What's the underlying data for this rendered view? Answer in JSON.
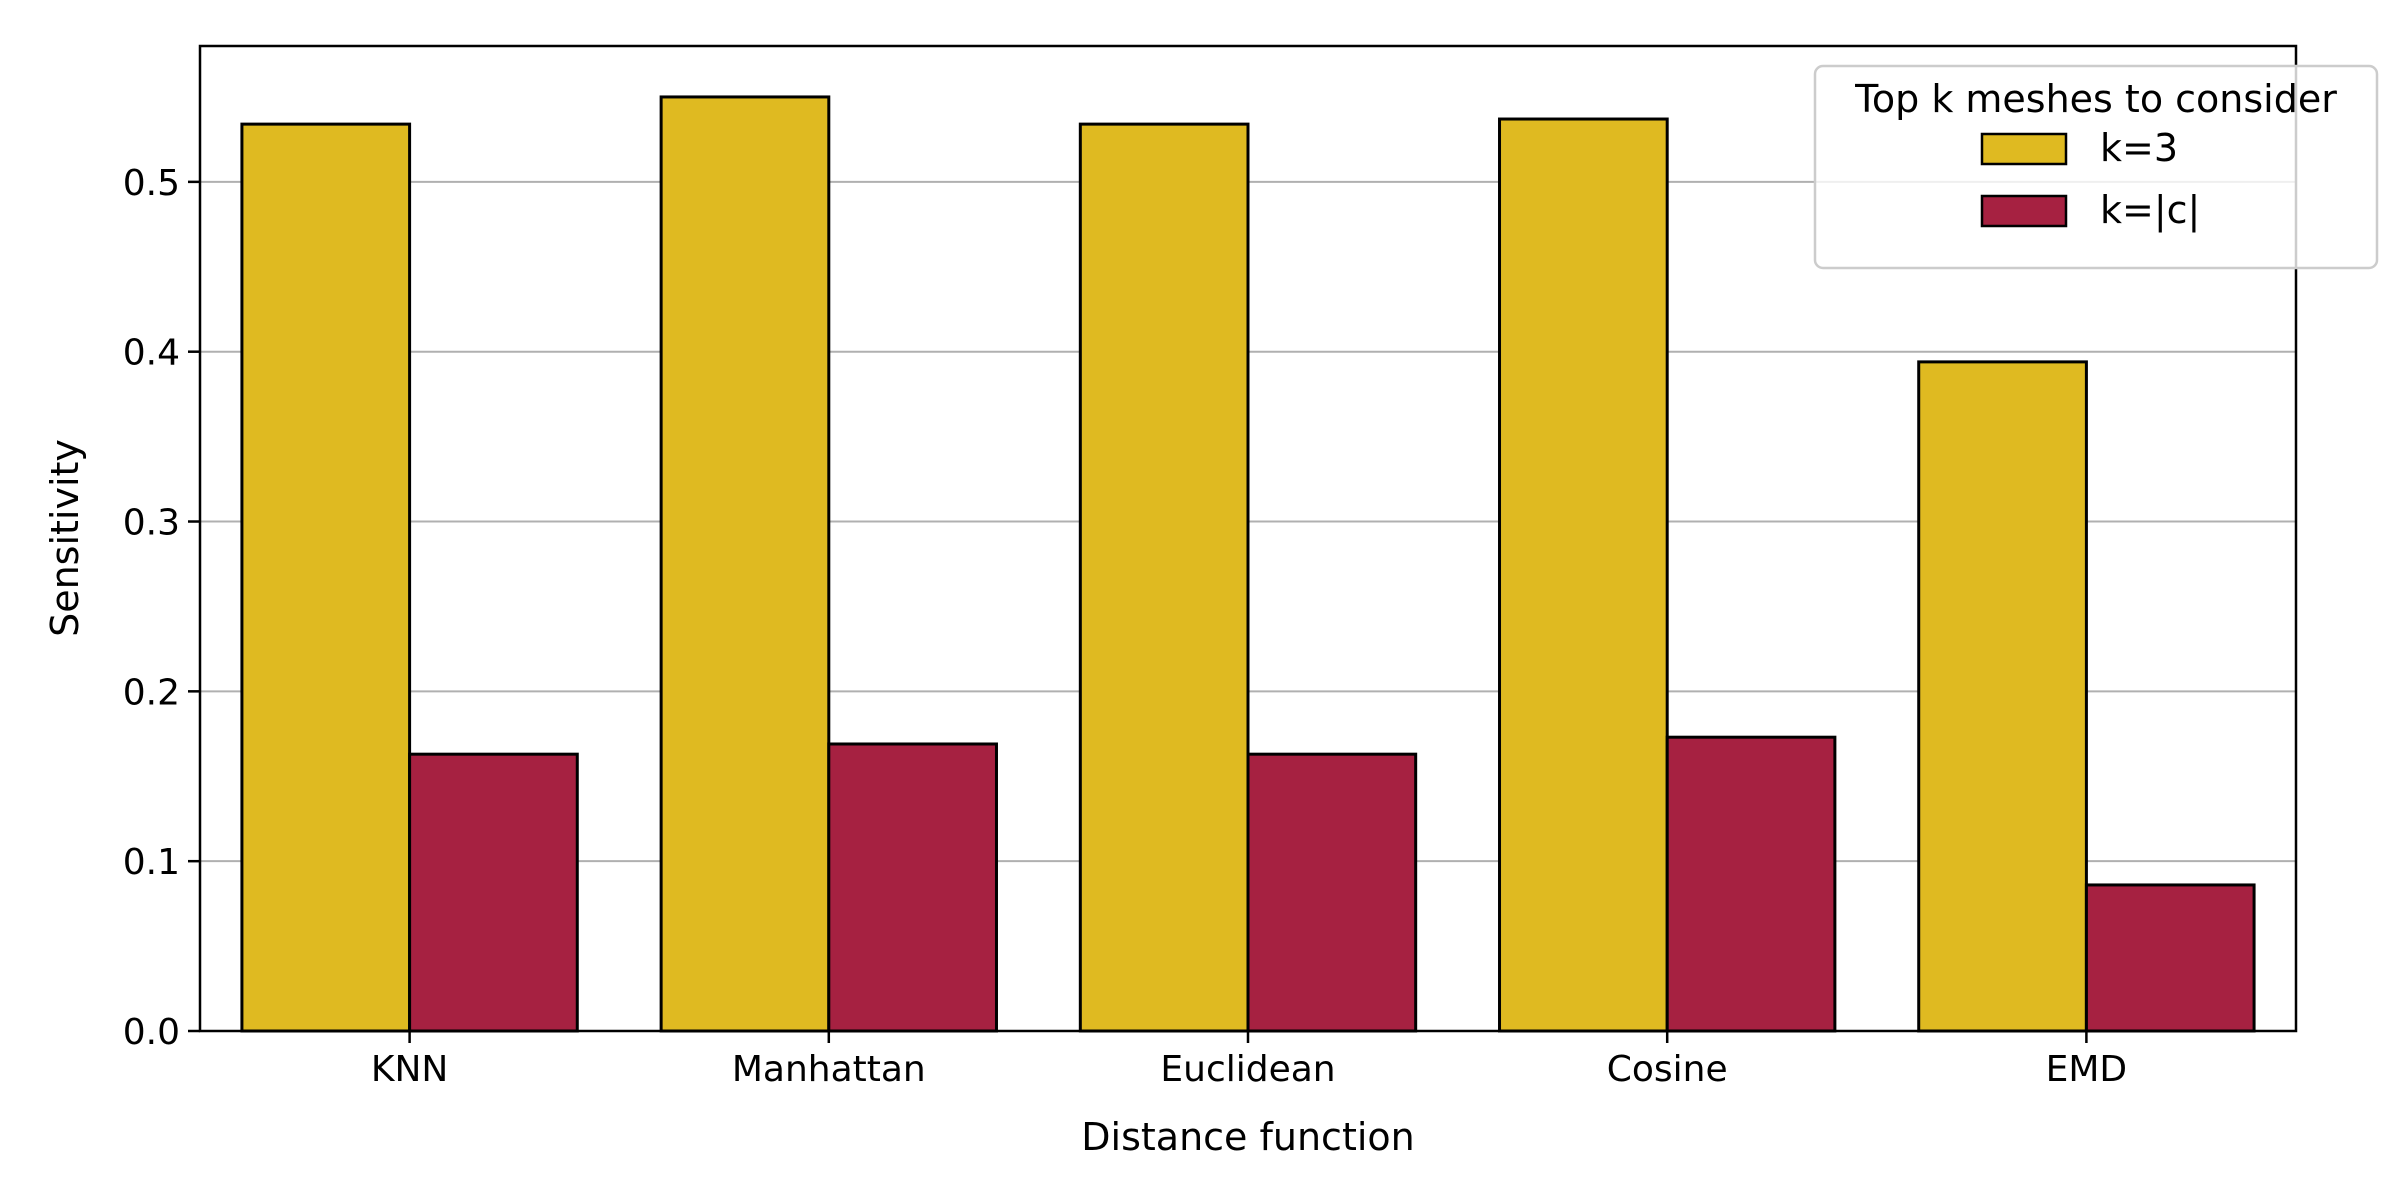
{
  "chart_data": {
    "type": "bar",
    "title": "",
    "xlabel": "Distance function",
    "ylabel": "Sensitivity",
    "categories": [
      "KNN",
      "Manhattan",
      "Euclidean",
      "Cosine",
      "EMD"
    ],
    "series": [
      {
        "name": "k=3",
        "color": "#DFBA21",
        "values": [
          0.534,
          0.55,
          0.534,
          0.537,
          0.394
        ]
      },
      {
        "name": "k=|c|",
        "color": "#A62141",
        "values": [
          0.163,
          0.169,
          0.163,
          0.173,
          0.086
        ]
      }
    ],
    "ylim": [
      0,
      0.58
    ],
    "yticks": [
      "0.0",
      "0.1",
      "0.2",
      "0.3",
      "0.4",
      "0.5"
    ],
    "grid": "y",
    "legend": {
      "title": "Top k meshes to consider",
      "placement": "top-right"
    }
  }
}
